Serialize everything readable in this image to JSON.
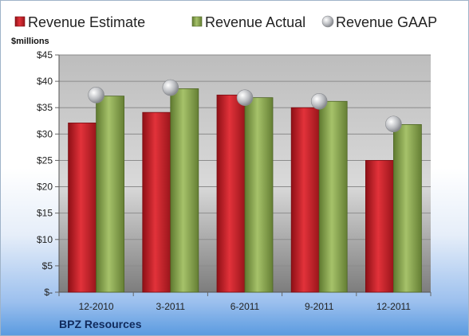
{
  "chart_data": {
    "type": "bar",
    "categories": [
      "12-2010",
      "3-2011",
      "6-2011",
      "9-2011",
      "12-2011"
    ],
    "series": [
      {
        "name": "Revenue Estimate",
        "kind": "bar",
        "color": "#cc1f26",
        "values": [
          32.1,
          34.1,
          37.4,
          35.0,
          25.0
        ]
      },
      {
        "name": "Revenue Actual",
        "kind": "bar",
        "color": "#8aa84e",
        "values": [
          37.2,
          38.6,
          36.9,
          36.2,
          31.8
        ]
      },
      {
        "name": "Revenue GAAP",
        "kind": "marker",
        "color": "#b7b9bd",
        "values": [
          37.4,
          38.8,
          36.9,
          36.2,
          31.9
        ]
      }
    ],
    "ylabel": "$millions",
    "ylim": [
      0,
      45
    ],
    "yticks": [
      0,
      5,
      10,
      15,
      20,
      25,
      30,
      35,
      40,
      45
    ],
    "ytick_labels": [
      "$-",
      "$5",
      "$10",
      "$15",
      "$20",
      "$25",
      "$30",
      "$35",
      "$40",
      "$45"
    ],
    "legend_position": "top",
    "grid": true
  },
  "footer": {
    "company": "BPZ Resources"
  }
}
